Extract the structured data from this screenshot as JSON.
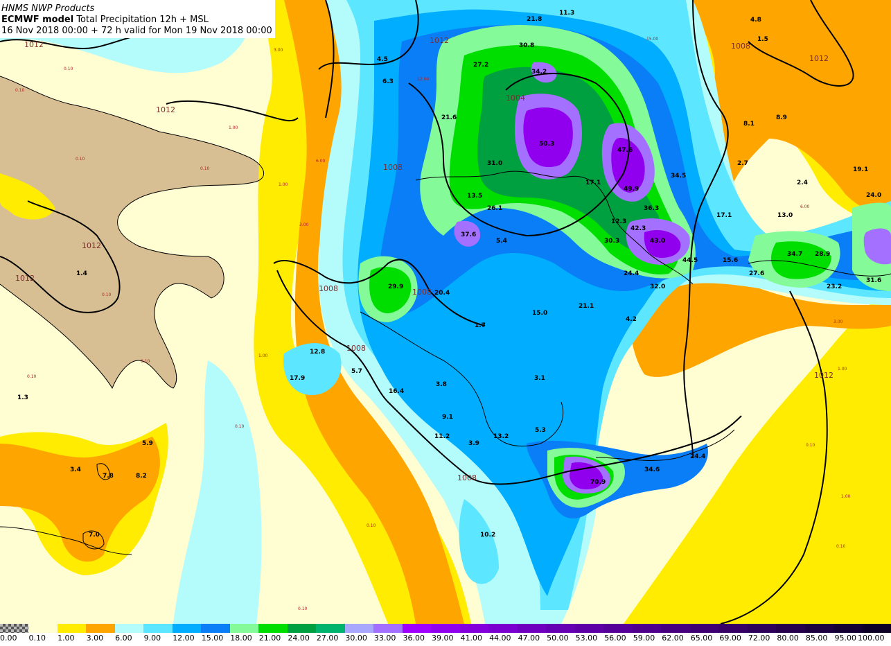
{
  "header": {
    "line1": "HNMS NWP Products",
    "model": "ECMWF model",
    "product": "Total Precipitation 12h + MSL",
    "validity": "16 Nov 2018 00:00 + 72 h valid for Mon 19 Nov 2018 00:00"
  },
  "legend": {
    "colors": [
      "#ffffff",
      "#fffdd2",
      "#ffec00",
      "#ffa500",
      "#b4fbfc",
      "#5de6ff",
      "#00adff",
      "#0a7ef7",
      "#85fa98",
      "#00de00",
      "#00a040",
      "#00b46e",
      "#a8a8ff",
      "#a470ff",
      "#a000ff",
      "#9000ee",
      "#8300dd",
      "#7a00cf",
      "#7000c0",
      "#6600b3",
      "#5d00a6",
      "#550099",
      "#4e008c",
      "#46007f",
      "#3e0073",
      "#360066",
      "#2e005a",
      "#26004d",
      "#1d0040",
      "#150033",
      "#0c0026"
    ],
    "labels": [
      "0.00",
      "0.10",
      "1.00",
      "3.00",
      "6.00",
      "9.00",
      "12.00",
      "15.00",
      "18.00",
      "21.00",
      "24.00",
      "27.00",
      "30.00",
      "33.00",
      "36.00",
      "39.00",
      "41.00",
      "44.00",
      "47.00",
      "50.00",
      "53.00",
      "56.00",
      "59.00",
      "62.00",
      "65.00",
      "69.00",
      "72.00",
      "80.00",
      "85.00",
      "95.00",
      "100.00"
    ]
  },
  "isobars": [
    "1012",
    "1012",
    "1012",
    "1012",
    "1012",
    "1012",
    "1008",
    "1008",
    "1008",
    "1008",
    "1008",
    "1008",
    "1004",
    "1012"
  ],
  "values": [
    "21.8",
    "11.3",
    "4.8",
    "1.5",
    "30.8",
    "27.2",
    "34.2",
    "4.5",
    "21.6",
    "50.3",
    "47.6",
    "31.0",
    "17.1",
    "49.9",
    "34.5",
    "2.7",
    "8.1",
    "8.9",
    "2.4",
    "19.1",
    "24.0",
    "13.5",
    "26.1",
    "37.6",
    "5.4",
    "12.3",
    "30.3",
    "42.3",
    "43.0",
    "36.3",
    "17.1",
    "13.0",
    "34.7",
    "28.9",
    "27.6",
    "23.2",
    "31.6",
    "15.6",
    "24.4",
    "32.0",
    "44.5",
    "29.9",
    "20.4",
    "21.1",
    "15.0",
    "4.2",
    "1.7",
    "3.1",
    "3.8",
    "12.8",
    "17.9",
    "5.7",
    "16.4",
    "9.1",
    "11.2",
    "3.9",
    "13.2",
    "5.3",
    "70.9",
    "34.6",
    "24.4",
    "10.2",
    "1.4",
    "1.3",
    "3.4",
    "7.8",
    "8.2",
    "5.9",
    "7.0",
    "6.3"
  ]
}
